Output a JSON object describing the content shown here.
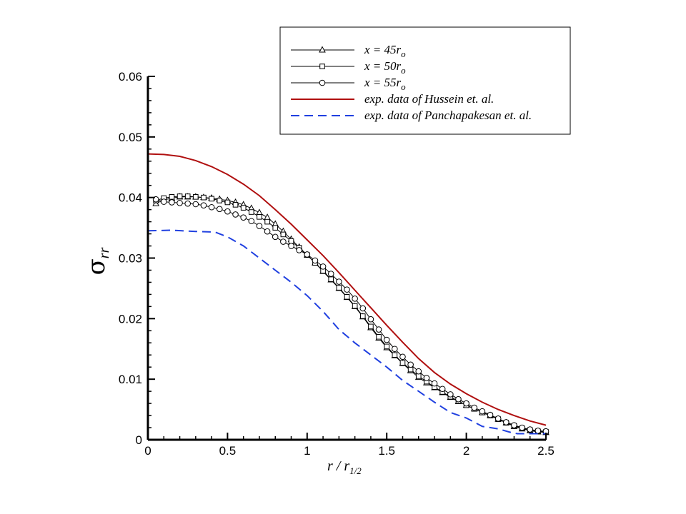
{
  "chart_data": {
    "type": "line",
    "title": "",
    "xlabel": {
      "main": "r / r",
      "sub": "1/2"
    },
    "ylabel": {
      "symbol": "σ",
      "sub": "rr"
    },
    "xlim": [
      0,
      2.5
    ],
    "ylim": [
      0,
      0.06
    ],
    "xticks": [
      0,
      0.5,
      1,
      1.5,
      2,
      2.5
    ],
    "xtick_labels": [
      "0",
      "0.5",
      "1",
      "1.5",
      "2",
      "2.5"
    ],
    "yticks": [
      0,
      0.01,
      0.02,
      0.03,
      0.04,
      0.05,
      0.06
    ],
    "ytick_labels": [
      "0",
      "0.01",
      "0.02",
      "0.03",
      "0.04",
      "0.05",
      "0.06"
    ],
    "grid": false,
    "legend": "top-right",
    "series": [
      {
        "label": {
          "main": "x = 45r",
          "sub": "o"
        },
        "color": "#000000",
        "line": "solid",
        "marker": "triangle",
        "x": [
          0.05,
          0.1,
          0.15,
          0.2,
          0.25,
          0.3,
          0.35,
          0.4,
          0.45,
          0.5,
          0.55,
          0.6,
          0.65,
          0.7,
          0.75,
          0.8,
          0.85,
          0.9,
          0.95,
          1.0,
          1.05,
          1.1,
          1.15,
          1.2,
          1.25,
          1.3,
          1.35,
          1.4,
          1.45,
          1.5,
          1.55,
          1.6,
          1.65,
          1.7,
          1.75,
          1.8,
          1.85,
          1.9,
          1.95,
          2.0,
          2.05,
          2.1,
          2.15,
          2.2,
          2.25,
          2.3,
          2.35,
          2.4,
          2.45,
          2.5
        ],
        "y": [
          0.039,
          0.0396,
          0.0399,
          0.0401,
          0.0401,
          0.0401,
          0.04,
          0.0399,
          0.0397,
          0.0395,
          0.0392,
          0.0388,
          0.0382,
          0.0375,
          0.0367,
          0.0356,
          0.0344,
          0.0331,
          0.0318,
          0.0305,
          0.0292,
          0.0278,
          0.0264,
          0.025,
          0.0235,
          0.022,
          0.0203,
          0.0185,
          0.0168,
          0.0152,
          0.0139,
          0.0126,
          0.0114,
          0.0103,
          0.0094,
          0.0086,
          0.0078,
          0.007,
          0.0063,
          0.0057,
          0.0051,
          0.0045,
          0.004,
          0.0034,
          0.0028,
          0.0022,
          0.0018,
          0.0015,
          0.0013,
          0.0012
        ]
      },
      {
        "label": {
          "main": "x = 50r",
          "sub": "o"
        },
        "color": "#000000",
        "line": "solid",
        "marker": "square",
        "x": [
          0.05,
          0.1,
          0.15,
          0.2,
          0.25,
          0.3,
          0.35,
          0.4,
          0.45,
          0.5,
          0.55,
          0.6,
          0.65,
          0.7,
          0.75,
          0.8,
          0.85,
          0.9,
          0.95,
          1.0,
          1.05,
          1.1,
          1.15,
          1.2,
          1.25,
          1.3,
          1.35,
          1.4,
          1.45,
          1.5,
          1.55,
          1.6,
          1.65,
          1.7,
          1.75,
          1.8,
          1.85,
          1.9,
          1.95,
          2.0,
          2.05,
          2.1,
          2.15,
          2.2,
          2.25,
          2.3,
          2.35,
          2.4,
          2.45,
          2.5
        ],
        "y": [
          0.0395,
          0.0399,
          0.0401,
          0.0402,
          0.0402,
          0.0401,
          0.04,
          0.0398,
          0.0395,
          0.0392,
          0.0388,
          0.0383,
          0.0376,
          0.0368,
          0.036,
          0.035,
          0.0339,
          0.0328,
          0.0317,
          0.0305,
          0.0292,
          0.0279,
          0.0265,
          0.0251,
          0.0236,
          0.0221,
          0.0204,
          0.0187,
          0.017,
          0.0154,
          0.014,
          0.0127,
          0.0116,
          0.0105,
          0.0096,
          0.0087,
          0.0079,
          0.0071,
          0.0064,
          0.0057,
          0.0051,
          0.0045,
          0.004,
          0.0034,
          0.0028,
          0.0023,
          0.0019,
          0.0016,
          0.0014,
          0.0013
        ]
      },
      {
        "label": {
          "main": "x = 55r",
          "sub": "o"
        },
        "color": "#000000",
        "line": "solid",
        "marker": "circle",
        "x": [
          0.05,
          0.1,
          0.15,
          0.2,
          0.25,
          0.3,
          0.35,
          0.4,
          0.45,
          0.5,
          0.55,
          0.6,
          0.65,
          0.7,
          0.75,
          0.8,
          0.85,
          0.9,
          0.95,
          1.0,
          1.05,
          1.1,
          1.15,
          1.2,
          1.25,
          1.3,
          1.35,
          1.4,
          1.45,
          1.5,
          1.55,
          1.6,
          1.65,
          1.7,
          1.75,
          1.8,
          1.85,
          1.9,
          1.95,
          2.0,
          2.05,
          2.1,
          2.15,
          2.2,
          2.25,
          2.3,
          2.35,
          2.4,
          2.45,
          2.5
        ],
        "y": [
          0.0397,
          0.0393,
          0.0392,
          0.0391,
          0.039,
          0.0389,
          0.0387,
          0.0384,
          0.0381,
          0.0377,
          0.0372,
          0.0367,
          0.0361,
          0.0353,
          0.0344,
          0.0335,
          0.0327,
          0.032,
          0.0313,
          0.0306,
          0.0296,
          0.0286,
          0.0274,
          0.0261,
          0.0248,
          0.0233,
          0.0217,
          0.0199,
          0.0182,
          0.0165,
          0.015,
          0.0137,
          0.0124,
          0.0113,
          0.0102,
          0.0093,
          0.0084,
          0.0075,
          0.0067,
          0.006,
          0.0053,
          0.0047,
          0.0041,
          0.0035,
          0.0029,
          0.0024,
          0.002,
          0.0017,
          0.0015,
          0.0014
        ]
      },
      {
        "label": {
          "main": "exp. data of Hussein et. al.",
          "sub": ""
        },
        "color": "#b01010",
        "line": "solid",
        "marker": "none",
        "x": [
          0,
          0.1,
          0.2,
          0.3,
          0.4,
          0.5,
          0.6,
          0.7,
          0.8,
          0.9,
          1.0,
          1.1,
          1.2,
          1.3,
          1.4,
          1.5,
          1.6,
          1.7,
          1.8,
          1.9,
          2.0,
          2.1,
          2.2,
          2.3,
          2.4,
          2.5
        ],
        "y": [
          0.0472,
          0.0471,
          0.0468,
          0.0461,
          0.0451,
          0.0438,
          0.0422,
          0.0403,
          0.038,
          0.0356,
          0.033,
          0.0304,
          0.0276,
          0.0247,
          0.0218,
          0.0189,
          0.0161,
          0.0134,
          0.0111,
          0.0092,
          0.0076,
          0.0062,
          0.005,
          0.004,
          0.0031,
          0.0024
        ]
      },
      {
        "label": {
          "main": "exp. data of Panchapakesan et. al.",
          "sub": ""
        },
        "color": "#2040e0",
        "line": "dashed",
        "marker": "none",
        "x": [
          0,
          0.15,
          0.3,
          0.42,
          0.5,
          0.6,
          0.7,
          0.8,
          0.9,
          1.0,
          1.1,
          1.2,
          1.3,
          1.4,
          1.5,
          1.6,
          1.7,
          1.8,
          1.9,
          2.0,
          2.1,
          2.2,
          2.28,
          2.32,
          2.5
        ],
        "y": [
          0.0345,
          0.0346,
          0.0344,
          0.0343,
          0.0335,
          0.032,
          0.03,
          0.028,
          0.026,
          0.0238,
          0.0212,
          0.0182,
          0.016,
          0.014,
          0.012,
          0.0098,
          0.008,
          0.0062,
          0.0045,
          0.0036,
          0.0022,
          0.0018,
          0.0012,
          0.001,
          0.001
        ]
      }
    ]
  }
}
